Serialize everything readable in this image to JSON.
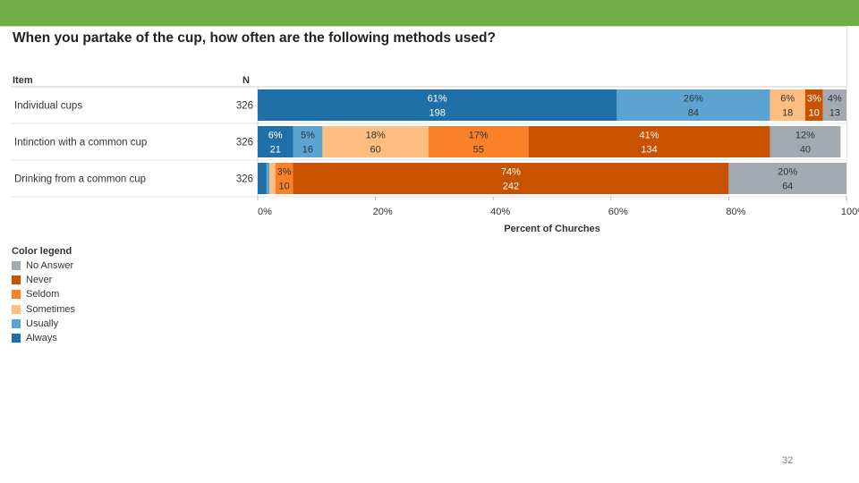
{
  "slide": {
    "page_number": "32"
  },
  "colors": {
    "Always": "#1f6fa8",
    "Usually": "#5ba3d0",
    "Sometimes": "#fdbe80",
    "Seldom": "#f98129",
    "Never": "#c95200",
    "No Answer": "#a4aab2"
  },
  "chart_data": {
    "type": "bar",
    "orientation": "horizontal-stacked-100",
    "title": "When you partake of the cup, how often are the following methods used?",
    "column_headers": {
      "item": "Item",
      "n": "N"
    },
    "xlabel": "Percent of Churches",
    "xticks": [
      "0%",
      "20%",
      "40%",
      "60%",
      "80%",
      "100%"
    ],
    "xlim": [
      0,
      100
    ],
    "rows": [
      {
        "item": "Individual cups",
        "n": "326",
        "segments": [
          {
            "category": "Always",
            "value": 61,
            "pct": "61%",
            "count": "198"
          },
          {
            "category": "Usually",
            "value": 26,
            "pct": "26%",
            "count": "84"
          },
          {
            "category": "Sometimes",
            "value": 6,
            "pct": "6%",
            "count": "18"
          },
          {
            "category": "Never",
            "value": 3,
            "pct": "3%",
            "count": "10"
          },
          {
            "category": "No Answer",
            "value": 4,
            "pct": "4%",
            "count": "13"
          }
        ]
      },
      {
        "item": "Intinction with a common cup",
        "n": "326",
        "segments": [
          {
            "category": "Always",
            "value": 6,
            "pct": "6%",
            "count": "21"
          },
          {
            "category": "Usually",
            "value": 5,
            "pct": "5%",
            "count": "16"
          },
          {
            "category": "Sometimes",
            "value": 18,
            "pct": "18%",
            "count": "60"
          },
          {
            "category": "Seldom",
            "value": 17,
            "pct": "17%",
            "count": "55"
          },
          {
            "category": "Never",
            "value": 41,
            "pct": "41%",
            "count": "134"
          },
          {
            "category": "No Answer",
            "value": 12,
            "pct": "12%",
            "count": "40"
          }
        ]
      },
      {
        "item": "Drinking from a common cup",
        "n": "326",
        "segments": [
          {
            "category": "Always",
            "value": 1.5,
            "pct": "",
            "count": ""
          },
          {
            "category": "Usually",
            "value": 0.5,
            "pct": "",
            "count": ""
          },
          {
            "category": "Sometimes",
            "value": 1,
            "pct": "",
            "count": ""
          },
          {
            "category": "Seldom",
            "value": 3,
            "pct": "3%",
            "count": "10"
          },
          {
            "category": "Never",
            "value": 74,
            "pct": "74%",
            "count": "242"
          },
          {
            "category": "No Answer",
            "value": 20,
            "pct": "20%",
            "count": "64"
          }
        ]
      }
    ],
    "legend": {
      "title": "Color legend",
      "items": [
        "No Answer",
        "Never",
        "Seldom",
        "Sometimes",
        "Usually",
        "Always"
      ]
    }
  }
}
